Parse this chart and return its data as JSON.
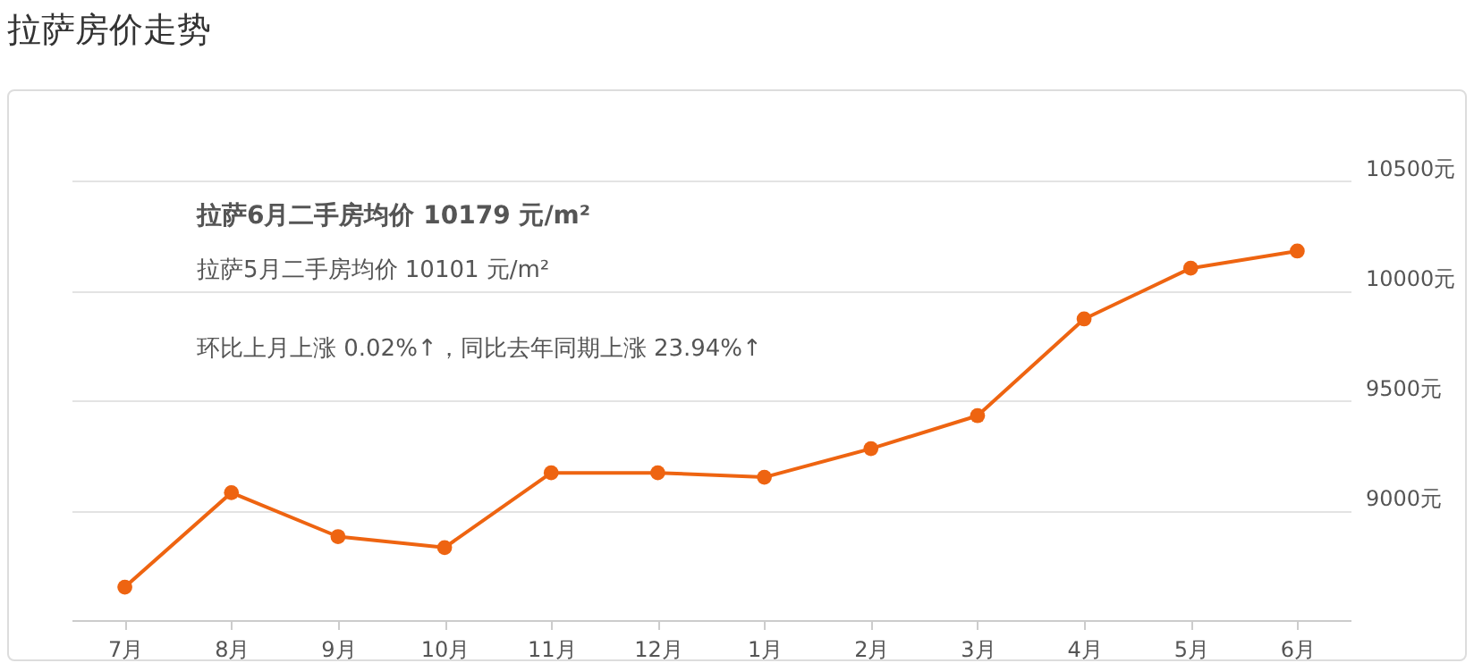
{
  "chart_data": {
    "type": "line",
    "title": "拉萨房价走势",
    "annotations": [
      "拉萨6月二手房均价 10179 元/m²",
      "拉萨5月二手房均价 10101 元/m²",
      "环比上月上涨 0.02%↑，同比去年同期上涨 23.94%↑"
    ],
    "categories": [
      "7月",
      "8月",
      "9月",
      "10月",
      "11月",
      "12月",
      "1月",
      "2月",
      "3月",
      "4月",
      "5月",
      "6月"
    ],
    "series": [
      {
        "color": "#ee6411",
        "values": [
          8650,
          9080,
          8880,
          8830,
          9170,
          9170,
          9150,
          9280,
          9430,
          9870,
          10101,
          10179
        ]
      }
    ],
    "ylim": [
      8500,
      10500
    ],
    "yticks": [
      {
        "value": 9000,
        "label": "9000元"
      },
      {
        "value": 9500,
        "label": "9500元"
      },
      {
        "value": 10000,
        "label": "10000元"
      },
      {
        "value": 10500,
        "label": "10500元"
      }
    ],
    "grid": "y",
    "legend": false,
    "marker": "circle",
    "line_style": "solid"
  }
}
